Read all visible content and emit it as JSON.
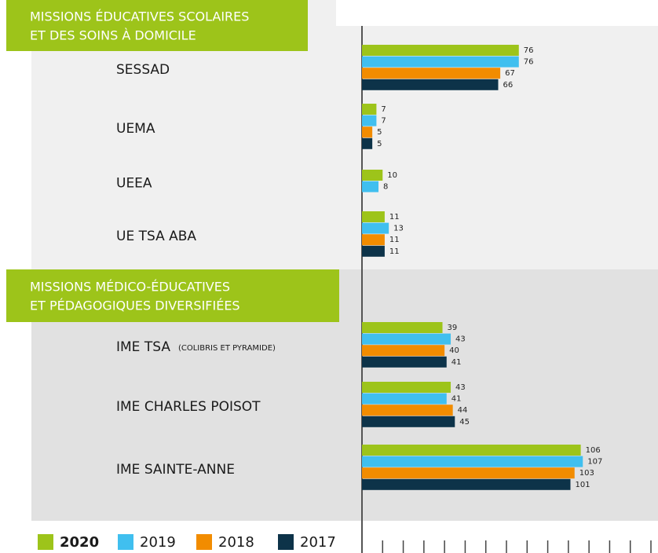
{
  "chart_data": {
    "type": "bar",
    "sections": [
      {
        "title": [
          "MISSIONS ÉDUCATIVES SCOLAIRES",
          "ET DES SOINS À DOMICILE"
        ]
      },
      {
        "title": [
          "MISSIONS MÉDICO-ÉDUCATIVES",
          "ET PÉDAGOGIQUES DIVERSIFIÉES"
        ]
      }
    ],
    "categories": [
      "SESSAD",
      "UEMA",
      "UEEA",
      "UE TSA ABA",
      "IME TSA",
      "IME CHARLES POISOT",
      "IME SAINTE-ANNE"
    ],
    "category_notes": [
      null,
      null,
      null,
      null,
      "(COLIBRIS ET PYRAMIDE)",
      null,
      null
    ],
    "series": [
      {
        "name": "2020",
        "color": "#9dc41a",
        "values": [
          76,
          7,
          10,
          11,
          39,
          43,
          106
        ]
      },
      {
        "name": "2019",
        "color": "#40bfef",
        "values": [
          76,
          7,
          8,
          13,
          43,
          41,
          107
        ]
      },
      {
        "name": "2018",
        "color": "#f28c00",
        "values": [
          67,
          5,
          null,
          11,
          40,
          44,
          103
        ]
      },
      {
        "name": "2017",
        "color": "#0d3349",
        "values": [
          66,
          5,
          null,
          11,
          41,
          45,
          101
        ]
      }
    ],
    "xlim": [
      0,
      140
    ],
    "xticks": [
      10,
      20,
      30,
      40,
      50,
      60,
      70,
      80,
      90,
      100,
      110,
      120,
      130,
      140
    ]
  }
}
